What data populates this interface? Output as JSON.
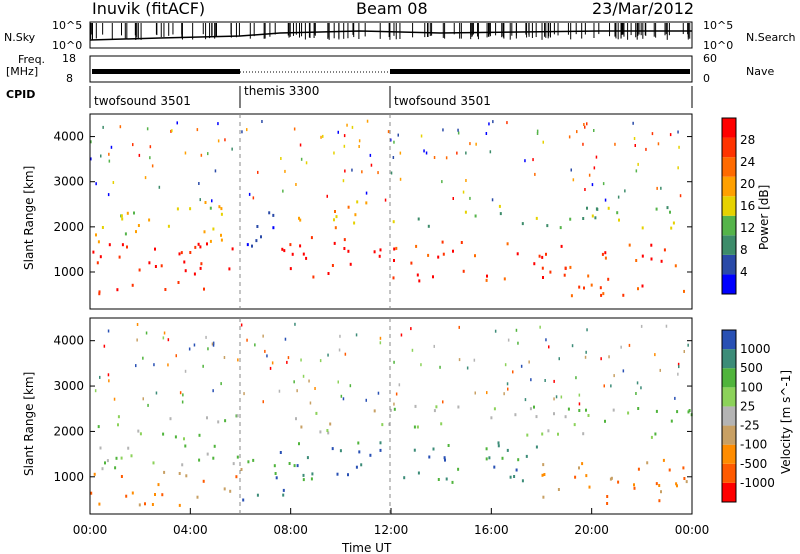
{
  "header": {
    "station": "Inuvik (fitACF)",
    "beam": "Beam 08",
    "date": "23/Mar/2012"
  },
  "top_panels": {
    "nsky_label": "N.Sky",
    "nsky_ticks": [
      "10^5",
      "10^0"
    ],
    "nsearch_label": "N.Search",
    "nsearch_ticks": [
      "10^5",
      "10^0"
    ],
    "freq_label": "Freq.",
    "freq_unit": "[MHz]",
    "freq_ticks": [
      "18",
      "8"
    ],
    "nave_label": "Nave",
    "nave_ticks": [
      "60",
      "0"
    ],
    "cpid_label": "CPID",
    "cpid_segments": [
      {
        "label": "twofsound 3501",
        "start": 0,
        "end": 6
      },
      {
        "label": "themis 3300",
        "start": 6,
        "end": 12
      },
      {
        "label": "twofsound 3501",
        "start": 12,
        "end": 24
      }
    ]
  },
  "colors": {
    "power": [
      "#0000ff",
      "#2a4aa8",
      "#3d8c6a",
      "#55b44a",
      "#e6d200",
      "#ffa000",
      "#ff6a00",
      "#ff3300",
      "#ff0000"
    ],
    "velocity": [
      "#2850b4",
      "#3c8c78",
      "#50b43c",
      "#8cd25a",
      "#b4b4b4",
      "#c8a064",
      "#ff8c00",
      "#ff5a00",
      "#ff0000"
    ]
  },
  "chart_data": [
    {
      "type": "heatmap",
      "name": "power",
      "ylabel": "Slant Range [km]",
      "colorbar_label": "Power [dB]",
      "colorbar_ticks": [
        "28",
        "24",
        "20",
        "16",
        "12",
        "8",
        "4"
      ],
      "ylim": [
        180,
        4500
      ],
      "y_ticks": [
        "1000",
        "2000",
        "3000",
        "4000"
      ],
      "xlim_hours": [
        0,
        24
      ],
      "bands": [
        {
          "t0": 0,
          "t1": 6,
          "r0": 500,
          "r1": 1700,
          "level": 8
        },
        {
          "t0": 0,
          "t1": 6,
          "r0": 1700,
          "r1": 2600,
          "level": 4
        },
        {
          "t0": 6,
          "t1": 8,
          "r0": 1500,
          "r1": 2400,
          "level": 1
        },
        {
          "t0": 7.5,
          "t1": 12,
          "r0": 800,
          "r1": 1800,
          "level": 8
        },
        {
          "t0": 8,
          "t1": 12,
          "r0": 2000,
          "r1": 2600,
          "level": 5
        },
        {
          "t0": 12,
          "t1": 18,
          "r0": 800,
          "r1": 1700,
          "level": 7
        },
        {
          "t0": 12,
          "t1": 24,
          "r0": 2000,
          "r1": 2500,
          "level": 3
        },
        {
          "t0": 18,
          "t1": 24,
          "r0": 500,
          "r1": 1700,
          "level": 7
        }
      ]
    },
    {
      "type": "heatmap",
      "name": "velocity",
      "ylabel": "Slant Range [km]",
      "colorbar_label": "Velocity [m s^-1]",
      "colorbar_ticks": [
        "1000",
        "500",
        "100",
        "25",
        "-25",
        "-100",
        "-500",
        "-1000"
      ],
      "ylim": [
        180,
        4500
      ],
      "y_ticks": [
        "1000",
        "2000",
        "3000",
        "4000"
      ],
      "xlabel": "Time UT",
      "x_ticks": [
        "00:00",
        "04:00",
        "08:00",
        "12:00",
        "16:00",
        "20:00",
        "00:00"
      ],
      "xlim_hours": [
        0,
        24
      ],
      "bands": [
        {
          "t0": 0,
          "t1": 6,
          "r0": 400,
          "r1": 1200,
          "level": 6
        },
        {
          "t0": 0,
          "t1": 6,
          "r0": 1200,
          "r1": 2400,
          "level": 3
        },
        {
          "t0": 6,
          "t1": 8,
          "r0": 400,
          "r1": 1500,
          "level": 1
        },
        {
          "t0": 7.5,
          "t1": 12,
          "r0": 800,
          "r1": 1800,
          "level": 1
        },
        {
          "t0": 8,
          "t1": 12,
          "r0": 2000,
          "r1": 2600,
          "level": 4
        },
        {
          "t0": 12,
          "t1": 18,
          "r0": 800,
          "r1": 1800,
          "level": 1
        },
        {
          "t0": 12,
          "t1": 24,
          "r0": 1900,
          "r1": 2600,
          "level": 3
        },
        {
          "t0": 18,
          "t1": 24,
          "r0": 400,
          "r1": 1500,
          "level": 6
        }
      ]
    }
  ]
}
